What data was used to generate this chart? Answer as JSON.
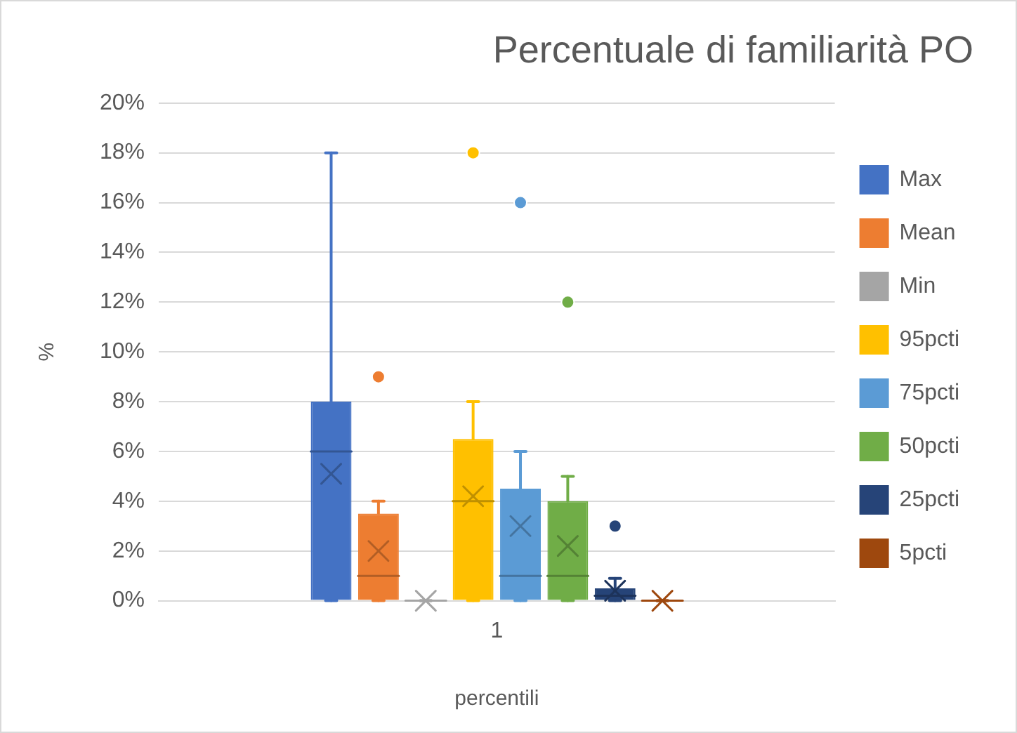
{
  "chart_data": {
    "type": "box",
    "title": "Percentuale di familiarità PO",
    "xlabel": "percentili",
    "ylabel": "%",
    "categories": [
      "1"
    ],
    "ylim": [
      0,
      20
    ],
    "yticks": [
      {
        "value": 0,
        "label": "0%"
      },
      {
        "value": 2,
        "label": "2%"
      },
      {
        "value": 4,
        "label": "4%"
      },
      {
        "value": 6,
        "label": "6%"
      },
      {
        "value": 8,
        "label": "8%"
      },
      {
        "value": 10,
        "label": "10%"
      },
      {
        "value": 12,
        "label": "12%"
      },
      {
        "value": 14,
        "label": "14%"
      },
      {
        "value": 16,
        "label": "16%"
      },
      {
        "value": 18,
        "label": "18%"
      },
      {
        "value": 20,
        "label": "20%"
      }
    ],
    "grid": "y",
    "legend": "right",
    "series": [
      {
        "name": "Max",
        "color": "#4472c4",
        "boxes": [
          {
            "low": 0,
            "q1": 0,
            "median": 6,
            "q3": 8,
            "high": 18,
            "mean": 5.1
          }
        ]
      },
      {
        "name": "Mean",
        "color": "#ed7d31",
        "boxes": [
          {
            "low": 0,
            "q1": 0,
            "median": 1,
            "q3": 3.5,
            "high": 4,
            "mean": 2,
            "outliers": [
              9
            ]
          }
        ]
      },
      {
        "name": "Min",
        "color": "#a5a5a5",
        "boxes": [
          {
            "low": 0,
            "q1": 0,
            "median": 0,
            "q3": 0,
            "high": 0,
            "mean": 0
          }
        ]
      },
      {
        "name": "95pcti",
        "color": "#ffc000",
        "boxes": [
          {
            "low": 0,
            "q1": 0,
            "median": 4,
            "q3": 6.5,
            "high": 8,
            "mean": 4.2,
            "outliers": [
              18
            ]
          }
        ]
      },
      {
        "name": "75pcti",
        "color": "#5b9bd5",
        "boxes": [
          {
            "low": 0,
            "q1": 0,
            "median": 1,
            "q3": 4.5,
            "high": 6,
            "mean": 3,
            "outliers": [
              16
            ]
          }
        ]
      },
      {
        "name": "50pcti",
        "color": "#70ad47",
        "boxes": [
          {
            "low": 0,
            "q1": 0,
            "median": 1,
            "q3": 4,
            "high": 5,
            "mean": 2.2,
            "outliers": [
              12
            ]
          }
        ]
      },
      {
        "name": "25pcti",
        "color": "#264478",
        "boxes": [
          {
            "low": 0,
            "q1": 0,
            "median": 0.2,
            "q3": 0.5,
            "high": 0.9,
            "mean": 0.4,
            "outliers": [
              3
            ]
          }
        ]
      },
      {
        "name": "5pcti",
        "color": "#9e480e",
        "boxes": [
          {
            "low": 0,
            "q1": 0,
            "median": 0,
            "q3": 0,
            "high": 0,
            "mean": 0
          }
        ]
      }
    ]
  }
}
